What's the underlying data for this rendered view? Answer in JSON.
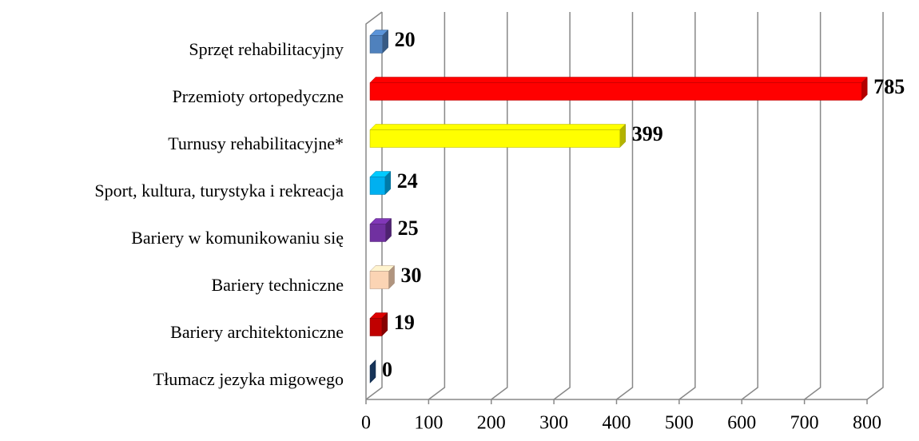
{
  "chart_data": {
    "type": "bar",
    "orientation": "horizontal",
    "categories": [
      "Sprzęt rehabilitacyjny",
      "Przemioty ortopedyczne",
      "Turnusy rehabilitacyjne*",
      "Sport, kultura, turystyka i rekreacja",
      "Bariery w komunikowaniu się",
      "Bariery techniczne",
      "Bariery architektoniczne",
      "Tłumacz jezyka migowego"
    ],
    "values": [
      20,
      785,
      399,
      24,
      25,
      30,
      19,
      0
    ],
    "colors": [
      "#4f81bd",
      "#ff0000",
      "#ffff00",
      "#00b0f0",
      "#7030a0",
      "#fbd4b4",
      "#c00000",
      "#1f497d"
    ],
    "xlim": [
      0,
      800
    ],
    "xticks": [
      0,
      100,
      200,
      300,
      400,
      500,
      600,
      700,
      800
    ],
    "grid": true
  }
}
